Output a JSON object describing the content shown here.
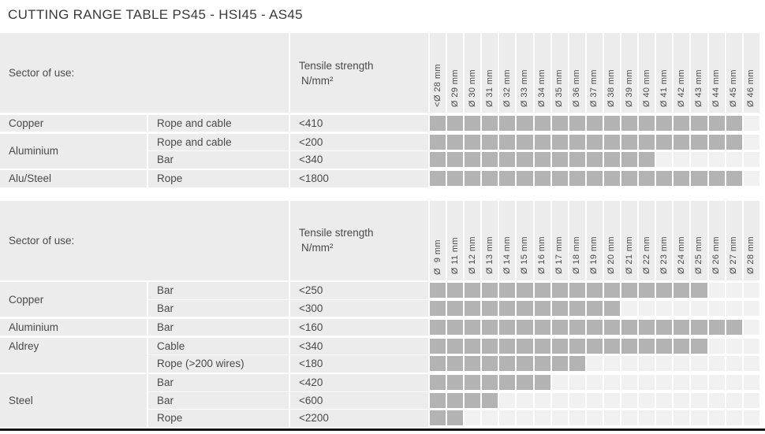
{
  "title": "CUTTING RANGE TABLE PS45 - HSI45 - AS45",
  "colors": {
    "filled_cell": "#b3b3b3",
    "empty_cell": "#f1f1f1",
    "header_bg": "#ececec",
    "text": "#4a4a4a",
    "title": "#3a3a3a",
    "bottom_rule": "#161616"
  },
  "header": {
    "sector": "Sector of use:",
    "tensile_line1": "Tensile strength",
    "tensile_line2": "N/mm²"
  },
  "tables": [
    {
      "name": "cutting-range-large-diameters",
      "diameters": [
        "<Ø 28 mm",
        "Ø 29 mm",
        "Ø 30 mm",
        "Ø 31 mm",
        "Ø 32 mm",
        "Ø 33 mm",
        "Ø 34 mm",
        "Ø 35 mm",
        "Ø 36 mm",
        "Ø 37 mm",
        "Ø 38 mm",
        "Ø 39 mm",
        "Ø 40 mm",
        "Ø 41 mm",
        "Ø 42 mm",
        "Ø 43 mm",
        "Ø 44 mm",
        "Ø 45 mm",
        "Ø 46 mm"
      ],
      "groups": [
        {
          "sector": "Copper",
          "label_align": "center",
          "rows": [
            {
              "material": "Rope and cable",
              "tensile": "<410",
              "filled": 18
            }
          ]
        },
        {
          "sector": "Aluminium",
          "label_align": "center",
          "rows": [
            {
              "material": "Rope and cable",
              "tensile": "<200",
              "filled": 18
            },
            {
              "material": "Bar",
              "tensile": "<340",
              "filled": 13
            }
          ]
        },
        {
          "sector": "Alu/Steel",
          "label_align": "center",
          "rows": [
            {
              "material": "Rope",
              "tensile": "<1800",
              "filled": 18
            }
          ]
        }
      ]
    },
    {
      "name": "cutting-range-small-diameters",
      "diameters": [
        "Ø  9 mm",
        "Ø 11 mm",
        "Ø 12 mm",
        "Ø 13 mm",
        "Ø 14 mm",
        "Ø 15 mm",
        "Ø 16 mm",
        "Ø 17 mm",
        "Ø 18 mm",
        "Ø 19 mm",
        "Ø 20 mm",
        "Ø 21 mm",
        "Ø 22 mm",
        "Ø 23 mm",
        "Ø 24 mm",
        "Ø 25 mm",
        "Ø 26 mm",
        "Ø 27 mm",
        "Ø 28 mm"
      ],
      "groups": [
        {
          "sector": "Copper",
          "label_align": "center",
          "rows": [
            {
              "material": "Bar",
              "tensile": "<250",
              "filled": 16
            },
            {
              "material": "Bar",
              "tensile": "<300",
              "filled": 11
            }
          ]
        },
        {
          "sector": "Aluminium",
          "label_align": "center",
          "rows": [
            {
              "material": "Bar",
              "tensile": "<160",
              "filled": 18
            }
          ]
        },
        {
          "sector": "Aldrey",
          "label_align": "top",
          "rows": [
            {
              "material": "Cable",
              "tensile": "<340",
              "filled": 16
            },
            {
              "material": "Rope (>200 wires)",
              "tensile": "<180",
              "filled": 9
            }
          ]
        },
        {
          "sector": "Steel",
          "label_align": "center",
          "rows": [
            {
              "material": "Bar",
              "tensile": "<420",
              "filled": 7
            },
            {
              "material": "Bar",
              "tensile": "<600",
              "filled": 4
            },
            {
              "material": "Rope",
              "tensile": "<2200",
              "filled": 2
            }
          ]
        }
      ]
    }
  ]
}
